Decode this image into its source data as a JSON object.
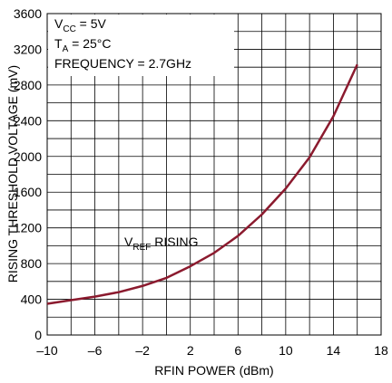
{
  "chart_data": {
    "type": "line",
    "x_label": "RFIN POWER (dBm)",
    "y_label": "RISING THRESHOLD VOLTAGE (mV)",
    "annotations": [
      [
        "V",
        "CC",
        " = 5V"
      ],
      [
        "T",
        "A",
        " = 25°C"
      ],
      [
        "FREQUENCY = 2.7GHz"
      ],
      [
        "V",
        "REF",
        " RISING"
      ]
    ],
    "x": [
      -10,
      -8,
      -6,
      -4,
      -2,
      0,
      2,
      4,
      6,
      8,
      10,
      12,
      14,
      16
    ],
    "series": [
      {
        "name": "VREF RISING",
        "color": "#8b1a2e",
        "values": [
          350,
          390,
          430,
          480,
          550,
          640,
          770,
          920,
          1110,
          1350,
          1640,
          1990,
          2450,
          3030
        ]
      }
    ],
    "xlim": [
      -10,
      18
    ],
    "xticks": [
      {
        "value": -10,
        "label": "–10"
      },
      {
        "value": -6,
        "label": "–6"
      },
      {
        "value": -2,
        "label": "–2"
      },
      2,
      6,
      10,
      14,
      18
    ],
    "xminor": [
      -8,
      -4,
      0,
      4,
      8,
      12,
      16
    ],
    "ylim": [
      0,
      3600
    ],
    "yticks": [
      0,
      400,
      800,
      1200,
      1600,
      2000,
      2400,
      2800,
      3200,
      3600
    ],
    "yminor": [
      200,
      600,
      1000,
      1400,
      1800,
      2200,
      2600,
      3000,
      3400
    ],
    "grid": true
  }
}
